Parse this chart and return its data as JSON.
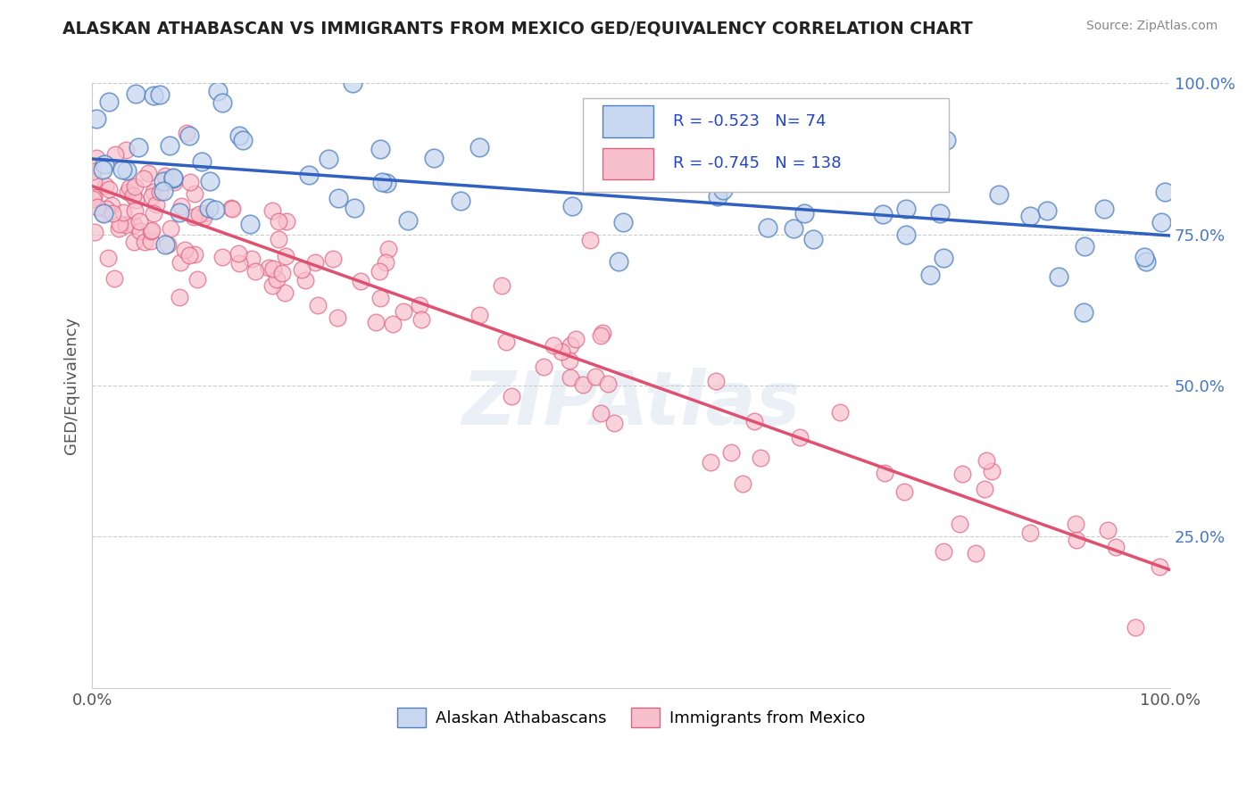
{
  "title": "ALASKAN ATHABASCAN VS IMMIGRANTS FROM MEXICO GED/EQUIVALENCY CORRELATION CHART",
  "source": "Source: ZipAtlas.com",
  "ylabel": "GED/Equivalency",
  "xlim": [
    0.0,
    1.0
  ],
  "ylim": [
    0.0,
    1.0
  ],
  "blue_R": -0.523,
  "blue_N": 74,
  "pink_R": -0.745,
  "pink_N": 138,
  "blue_face": "#c8d8f0",
  "blue_edge": "#5080c0",
  "pink_face": "#f8c0cc",
  "pink_edge": "#e06080",
  "blue_line": "#3060c0",
  "pink_line": "#e05070",
  "legend_label_blue": "Alaskan Athabascans",
  "legend_label_pink": "Immigrants from Mexico",
  "watermark": "ZIPAtlas",
  "bg": "#ffffff",
  "grid_color": "#cccccc",
  "blue_trend_start_y": 0.875,
  "blue_trend_end_y": 0.748,
  "pink_trend_start_y": 0.83,
  "pink_trend_end_y": 0.195
}
